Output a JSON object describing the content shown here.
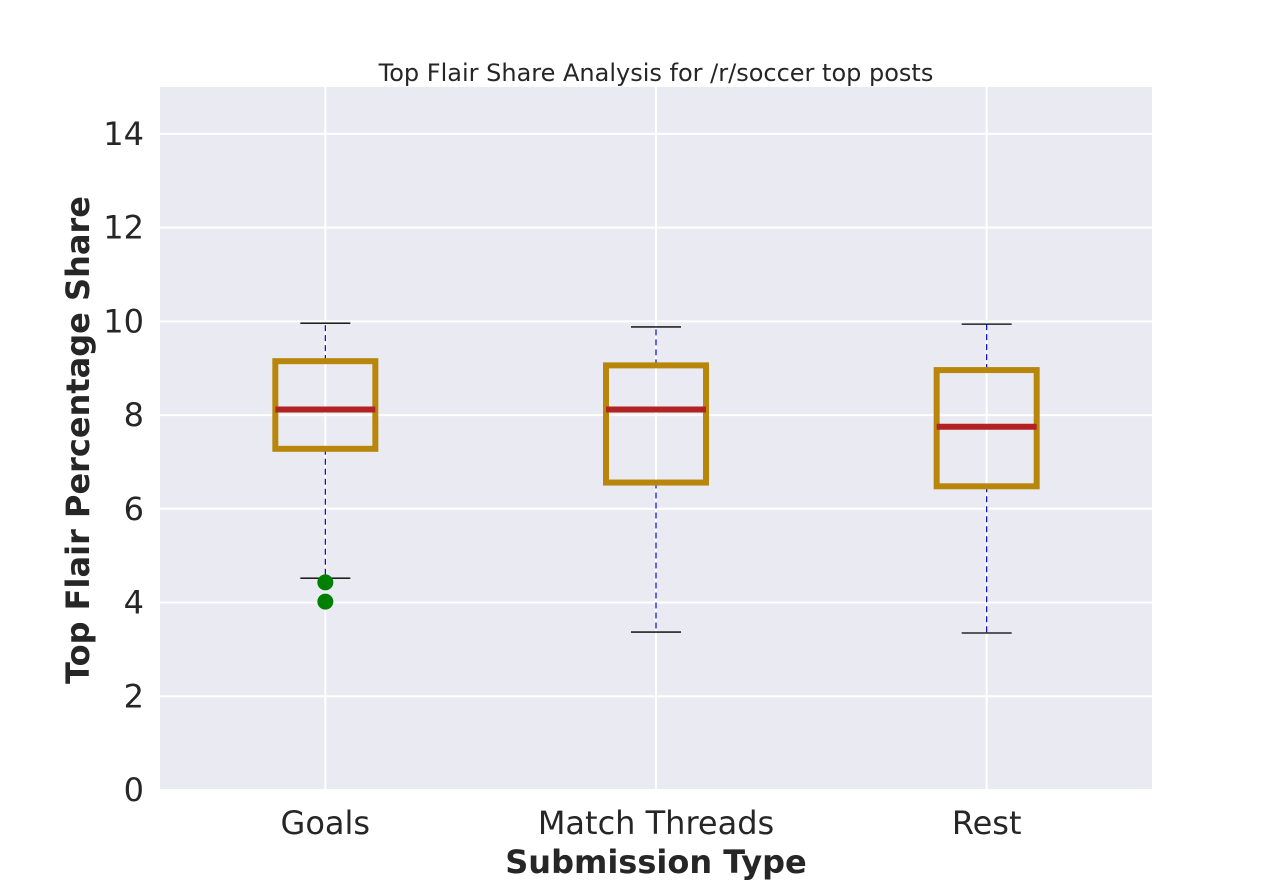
{
  "chart_data": {
    "type": "box",
    "title": "Top Flair Share Analysis for /r/soccer top posts",
    "xlabel": "Submission Type",
    "ylabel": "Top Flair Percentage Share",
    "ylim": [
      0,
      15
    ],
    "yticks": [
      0,
      2,
      4,
      6,
      8,
      10,
      12,
      14
    ],
    "grid": true,
    "categories": [
      "Goals",
      "Match Threads",
      "Rest"
    ],
    "boxes": [
      {
        "category": "Goals",
        "whisker_low": 4.52,
        "q1": 7.28,
        "median": 8.12,
        "q3": 9.15,
        "whisker_high": 9.96,
        "outliers": [
          4.43,
          4.02
        ]
      },
      {
        "category": "Match Threads",
        "whisker_low": 3.37,
        "q1": 6.56,
        "median": 8.12,
        "q3": 9.06,
        "whisker_high": 9.88,
        "outliers": []
      },
      {
        "category": "Rest",
        "whisker_low": 3.35,
        "q1": 6.48,
        "median": 7.75,
        "q3": 8.96,
        "whisker_high": 9.94,
        "outliers": []
      }
    ],
    "colors": {
      "plot_background": "#eaeaf2",
      "grid": "#ffffff",
      "box": "#b8860b",
      "median": "#b22222",
      "whisker": "#0000cd",
      "cap": "#000000",
      "outlier": "#008000"
    }
  }
}
